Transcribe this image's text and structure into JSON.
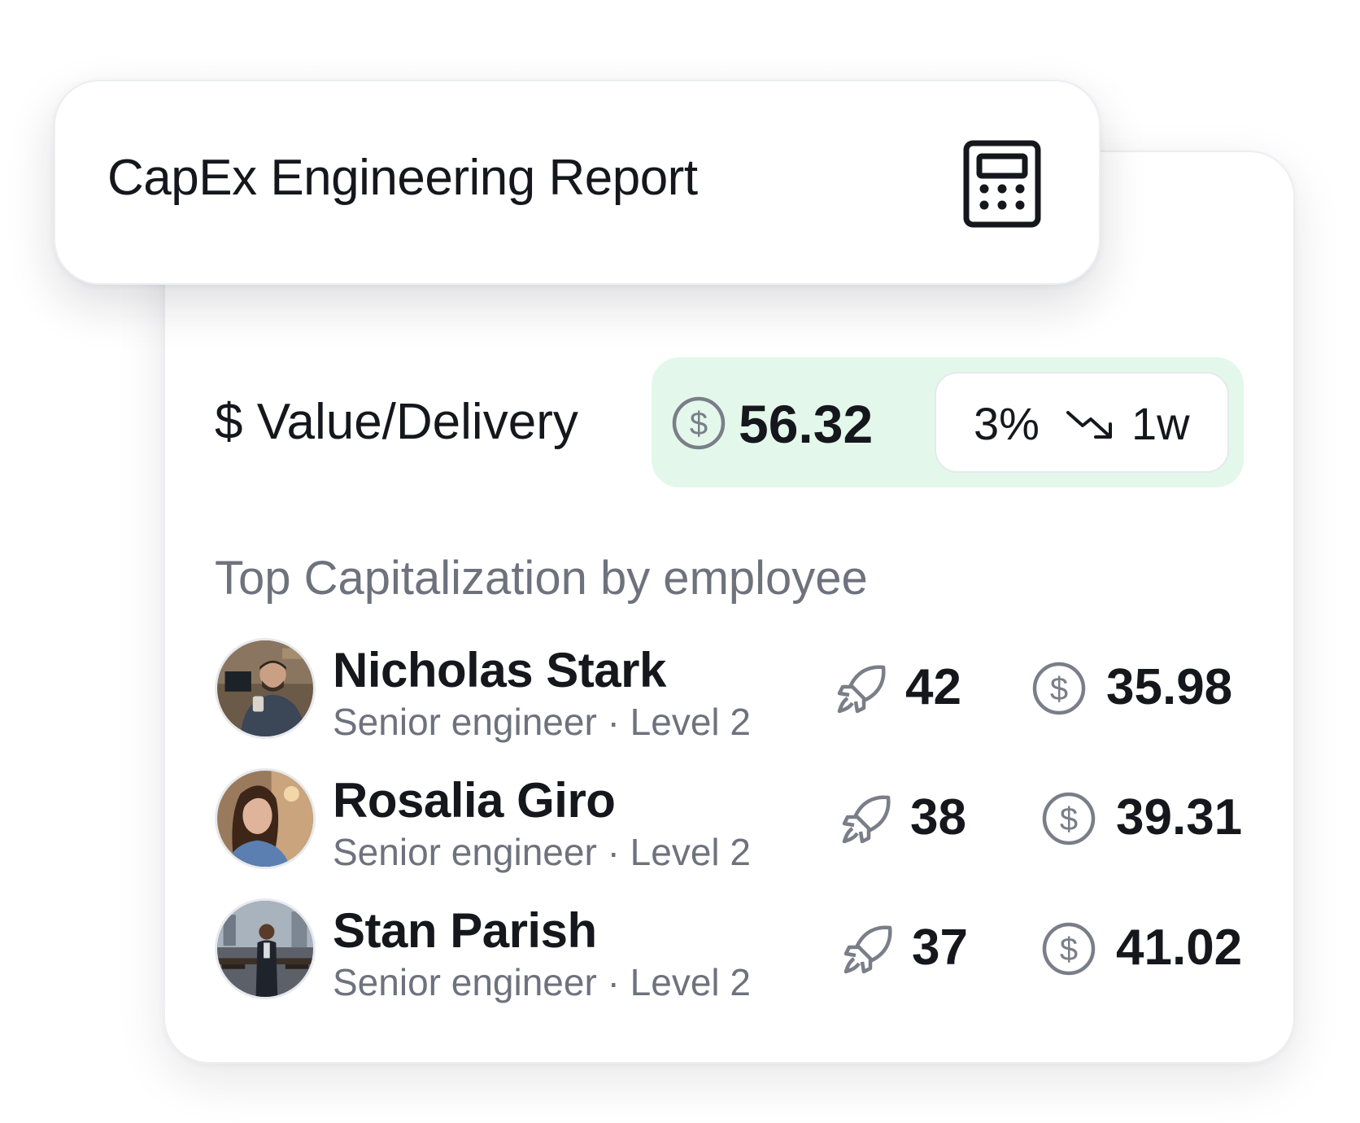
{
  "header": {
    "title": "CapEx Engineering Report",
    "icon": "calculator-icon"
  },
  "metric": {
    "label": "$ Value/Delivery",
    "value": "56.32",
    "icon": "dollar-circle-icon",
    "trend": {
      "percent": "3%",
      "direction": "down",
      "icon": "trend-down-arrow-icon",
      "period": "1w"
    },
    "pill_color": "#e3f8ea"
  },
  "section": {
    "heading": "Top Capitalization by employee"
  },
  "employees": [
    {
      "name": "Nicholas Stark",
      "role": "Senior engineer · Level 2",
      "deliveries": "42",
      "value": "35.98"
    },
    {
      "name": "Rosalia Giro",
      "role": "Senior engineer · Level 2",
      "deliveries": "38",
      "value": "39.31"
    },
    {
      "name": "Stan Parish",
      "role": "Senior engineer · Level 2",
      "deliveries": "37",
      "value": "41.02"
    }
  ],
  "colors": {
    "text_primary": "#15171c",
    "text_secondary": "#6e727d",
    "icon_gray": "#7a7e88",
    "accent_green_bg": "#e3f8ea"
  }
}
